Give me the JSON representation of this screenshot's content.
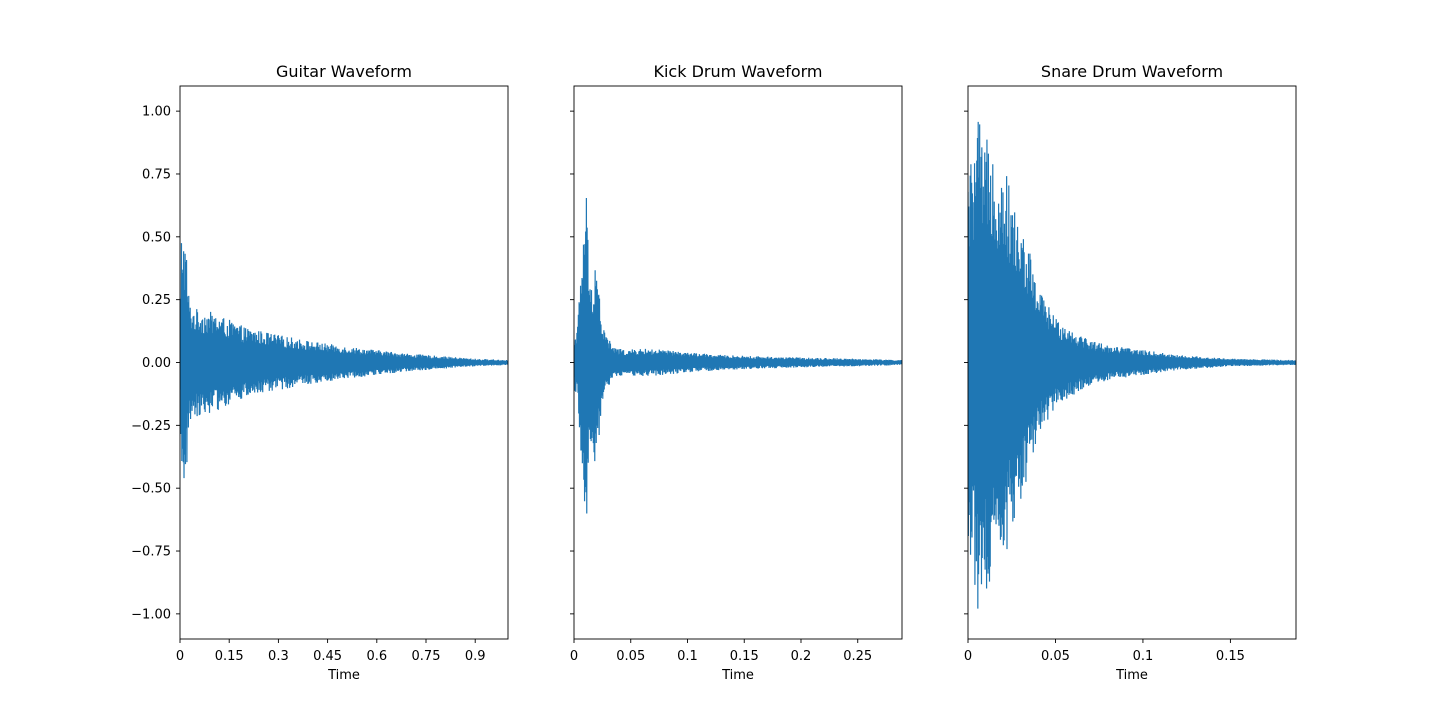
{
  "chart_data": [
    {
      "type": "line",
      "title": "Guitar Waveform",
      "xlabel": "Time",
      "ylabel": "",
      "xlim": [
        0,
        1.0
      ],
      "ylim": [
        -1.1,
        1.1
      ],
      "x_ticks": [
        "0",
        "0.15",
        "0.3",
        "0.45",
        "0.6",
        "0.75",
        "0.9"
      ],
      "x_tick_values": [
        0,
        0.15,
        0.3,
        0.45,
        0.6,
        0.75,
        0.9
      ],
      "y_ticks": [
        "−1.00",
        "−0.75",
        "−0.50",
        "−0.25",
        "0.00",
        "0.25",
        "0.50",
        "0.75",
        "1.00"
      ],
      "y_tick_values": [
        -1,
        -0.75,
        -0.5,
        -0.25,
        0,
        0.25,
        0.5,
        0.75,
        1
      ],
      "show_y_tick_labels": true,
      "series": [
        {
          "color": "#1f77b4",
          "envelope": {
            "t": [
              0,
              0.005,
              0.01,
              0.015,
              0.02,
              0.025,
              0.03,
              0.04,
              0.06,
              0.1,
              0.15,
              0.2,
              0.3,
              0.4,
              0.5,
              0.6,
              0.7,
              0.8,
              0.9,
              1.0
            ],
            "amp": [
              0.05,
              0.58,
              0.52,
              0.49,
              0.44,
              0.3,
              0.24,
              0.22,
              0.21,
              0.2,
              0.17,
              0.14,
              0.11,
              0.085,
              0.065,
              0.05,
              0.035,
              0.025,
              0.015,
              0.01
            ]
          }
        }
      ]
    },
    {
      "type": "line",
      "title": "Kick Drum Waveform",
      "xlabel": "Time",
      "ylabel": "",
      "xlim": [
        0,
        0.289
      ],
      "ylim": [
        -1.1,
        1.1
      ],
      "x_ticks": [
        "0",
        "0.05",
        "0.1",
        "0.15",
        "0.2",
        "0.25"
      ],
      "x_tick_values": [
        0,
        0.05,
        0.1,
        0.15,
        0.2,
        0.25
      ],
      "y_ticks": [
        "",
        "",
        "",
        "",
        "",
        "",
        "",
        "",
        ""
      ],
      "y_tick_values": [
        -1,
        -0.75,
        -0.5,
        -0.25,
        0,
        0.25,
        0.5,
        0.75,
        1
      ],
      "show_y_tick_labels": false,
      "series": [
        {
          "color": "#1f77b4",
          "envelope": {
            "t": [
              0,
              0.003,
              0.006,
              0.009,
              0.011,
              0.014,
              0.017,
              0.019,
              0.022,
              0.025,
              0.03,
              0.035,
              0.045,
              0.06,
              0.08,
              0.1,
              0.13,
              0.16,
              0.2,
              0.25,
              0.289
            ],
            "amp": [
              0.1,
              0.15,
              0.35,
              0.6,
              0.69,
              0.3,
              0.35,
              0.45,
              0.3,
              0.15,
              0.1,
              0.06,
              0.05,
              0.055,
              0.05,
              0.04,
              0.03,
              0.025,
              0.02,
              0.015,
              0.01
            ]
          }
        }
      ]
    },
    {
      "type": "line",
      "title": "Snare Drum Waveform",
      "xlabel": "Time",
      "ylabel": "",
      "xlim": [
        0,
        0.1875
      ],
      "ylim": [
        -1.1,
        1.1
      ],
      "x_ticks": [
        "0",
        "0.05",
        "0.1",
        "0.15"
      ],
      "x_tick_values": [
        0,
        0.05,
        0.1,
        0.15
      ],
      "y_ticks": [
        "",
        "",
        "",
        "",
        "",
        "",
        "",
        "",
        ""
      ],
      "y_tick_values": [
        -1,
        -0.75,
        -0.5,
        -0.25,
        0,
        0.25,
        0.5,
        0.75,
        1
      ],
      "show_y_tick_labels": false,
      "series": [
        {
          "color": "#1f77b4",
          "envelope": {
            "t": [
              0,
              0.003,
              0.006,
              0.009,
              0.012,
              0.015,
              0.018,
              0.021,
              0.025,
              0.03,
              0.035,
              0.04,
              0.05,
              0.06,
              0.07,
              0.08,
              0.1,
              0.12,
              0.15,
              0.1875
            ],
            "amp": [
              0.75,
              0.85,
              1.0,
              0.8,
              0.99,
              0.85,
              0.75,
              0.8,
              0.65,
              0.55,
              0.45,
              0.3,
              0.18,
              0.13,
              0.09,
              0.07,
              0.05,
              0.03,
              0.015,
              0.01
            ]
          }
        }
      ]
    }
  ]
}
